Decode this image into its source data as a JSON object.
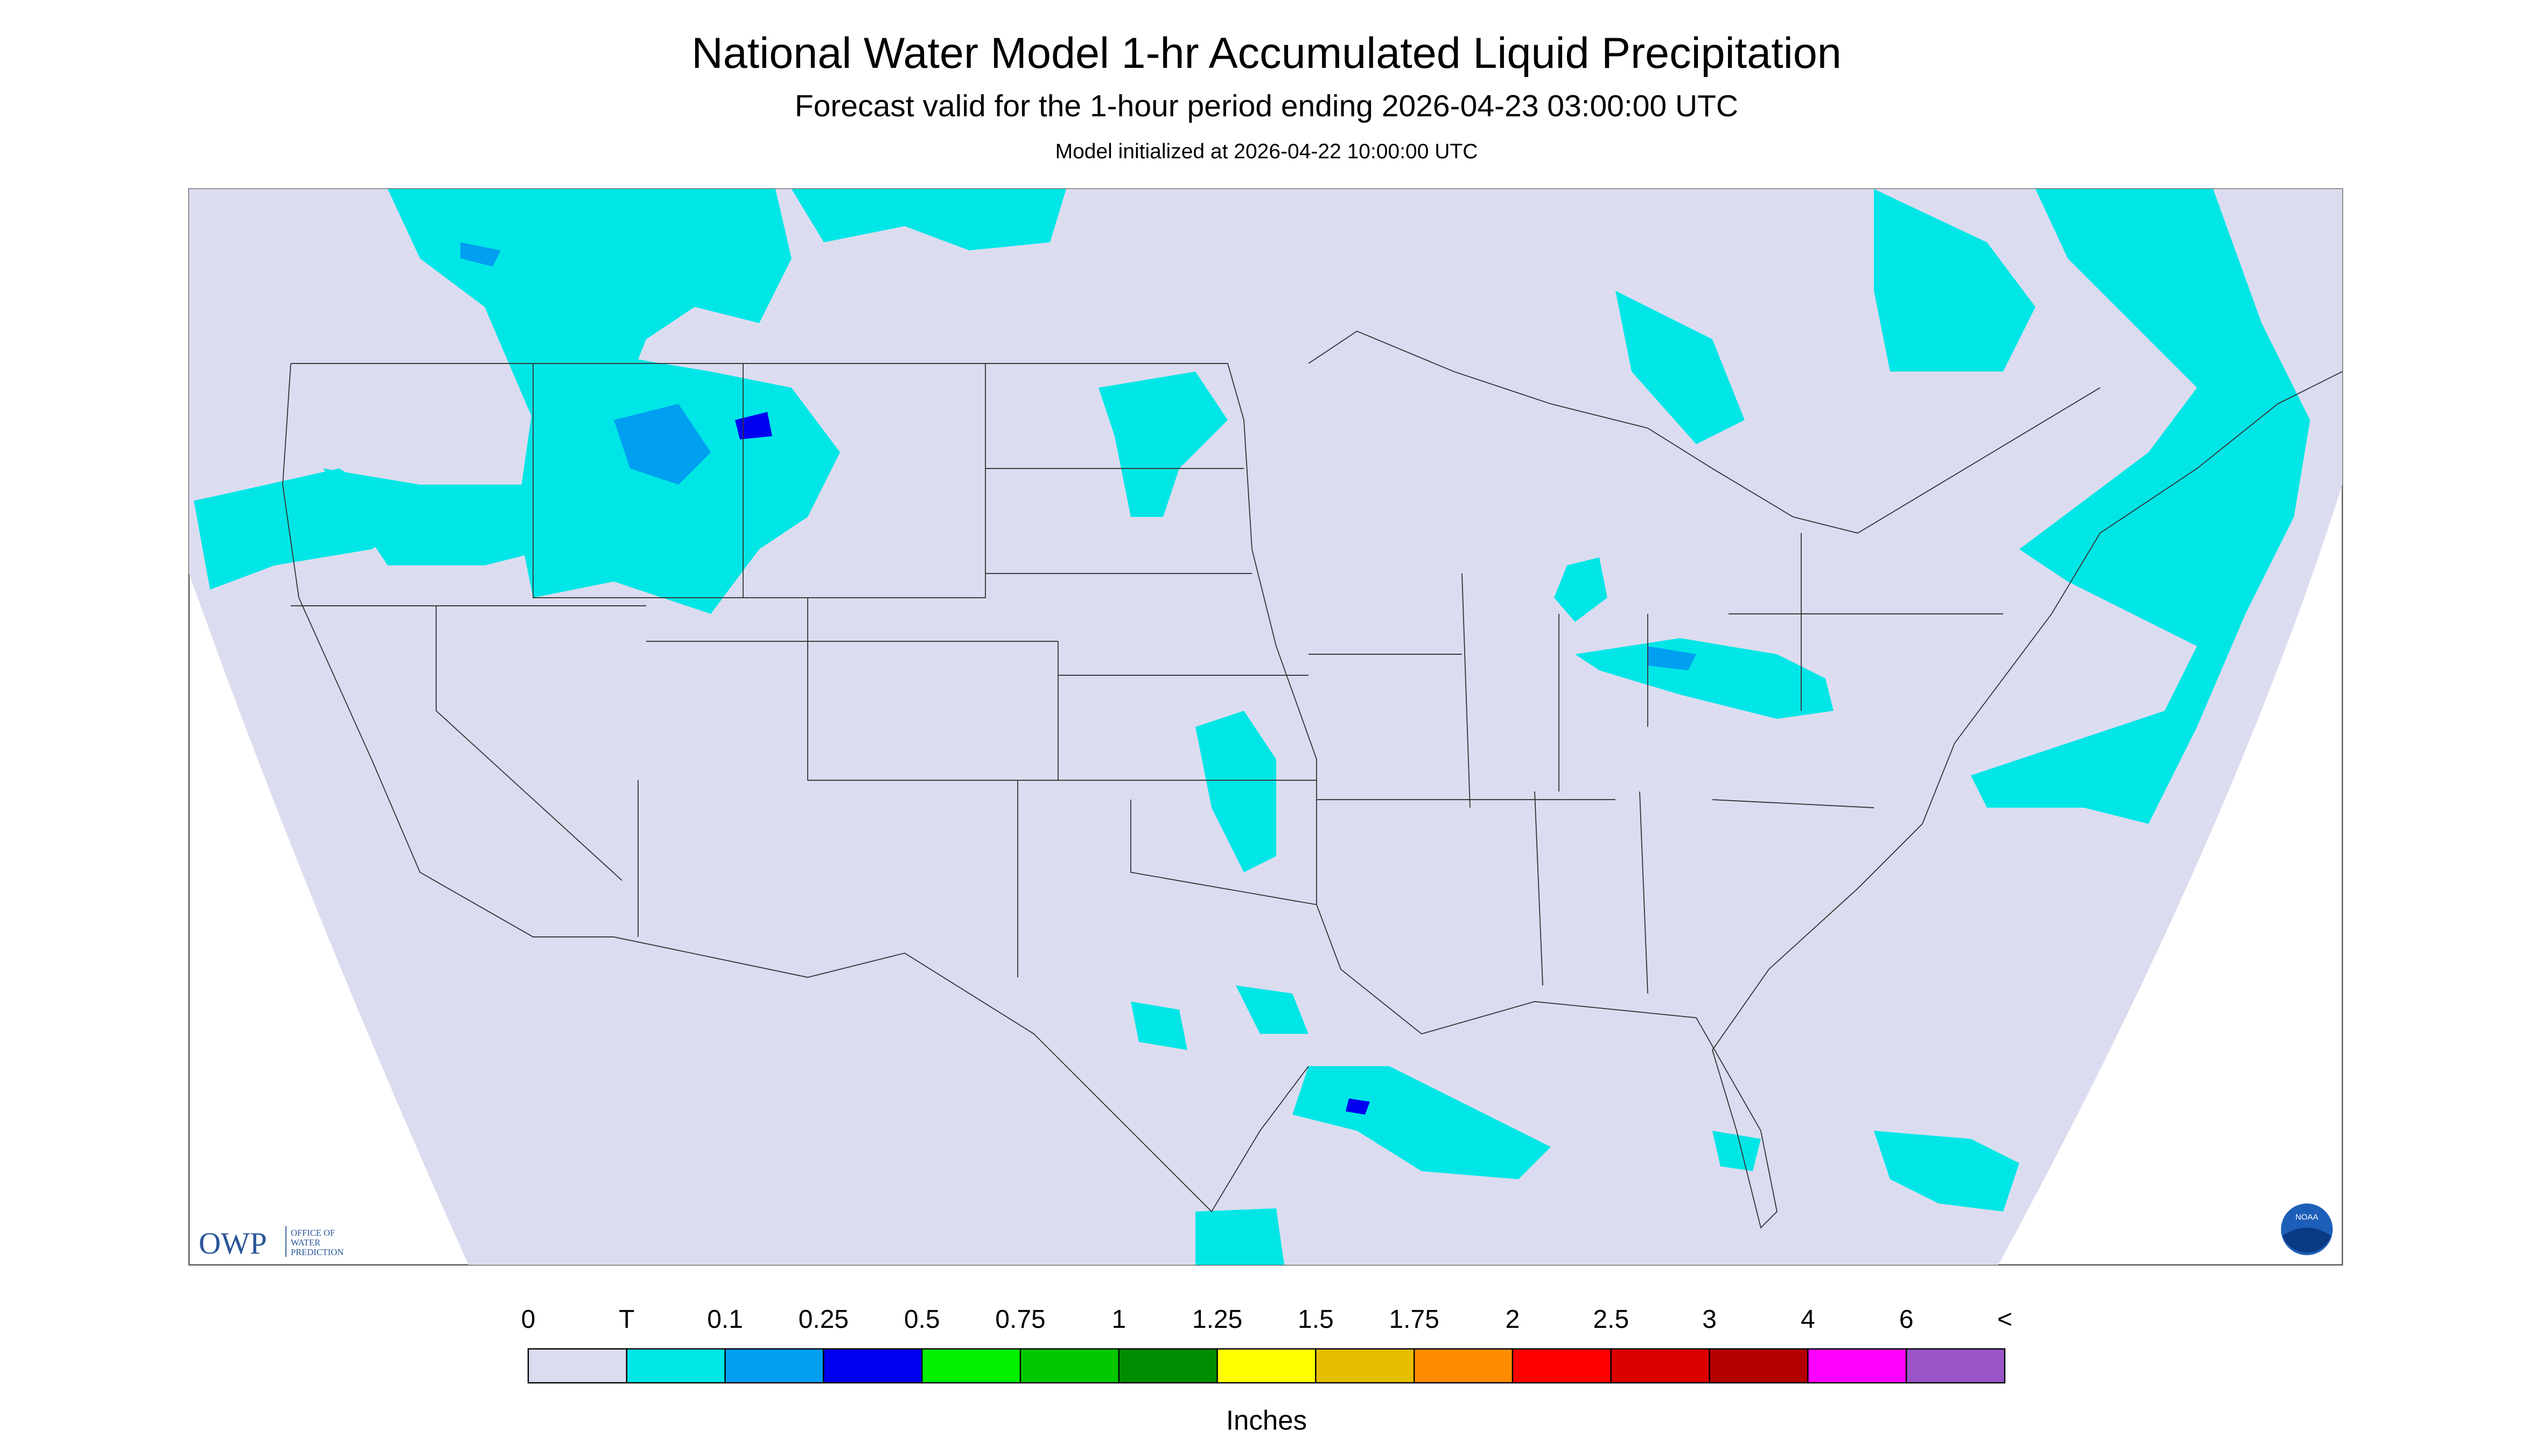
{
  "header": {
    "title": "National Water Model 1-hr Accumulated Liquid Precipitation",
    "subtitle": "Forecast valid for the 1-hour period ending 2026-04-23 03:00:00 UTC",
    "init": "Model initialized at 2026-04-22 10:00:00 UTC"
  },
  "legend": {
    "labels": [
      "0",
      "T",
      "0.1",
      "0.25",
      "0.5",
      "0.75",
      "1",
      "1.25",
      "1.5",
      "1.75",
      "2",
      "2.5",
      "3",
      "4",
      "6",
      "<"
    ],
    "colors": [
      "#dcdcf0",
      "#00e6e6",
      "#009ff0",
      "#0000f0",
      "#00f000",
      "#00c800",
      "#008c00",
      "#ffff00",
      "#e6be00",
      "#ff8c00",
      "#ff0000",
      "#dc0000",
      "#b40000",
      "#ff00ff",
      "#9955c8"
    ],
    "unit": "Inches"
  },
  "logos": {
    "owp": {
      "abbr": "OWP",
      "lines": [
        "OFFICE OF",
        "WATER",
        "PREDICTION"
      ]
    },
    "noaa": "NOAA"
  }
}
